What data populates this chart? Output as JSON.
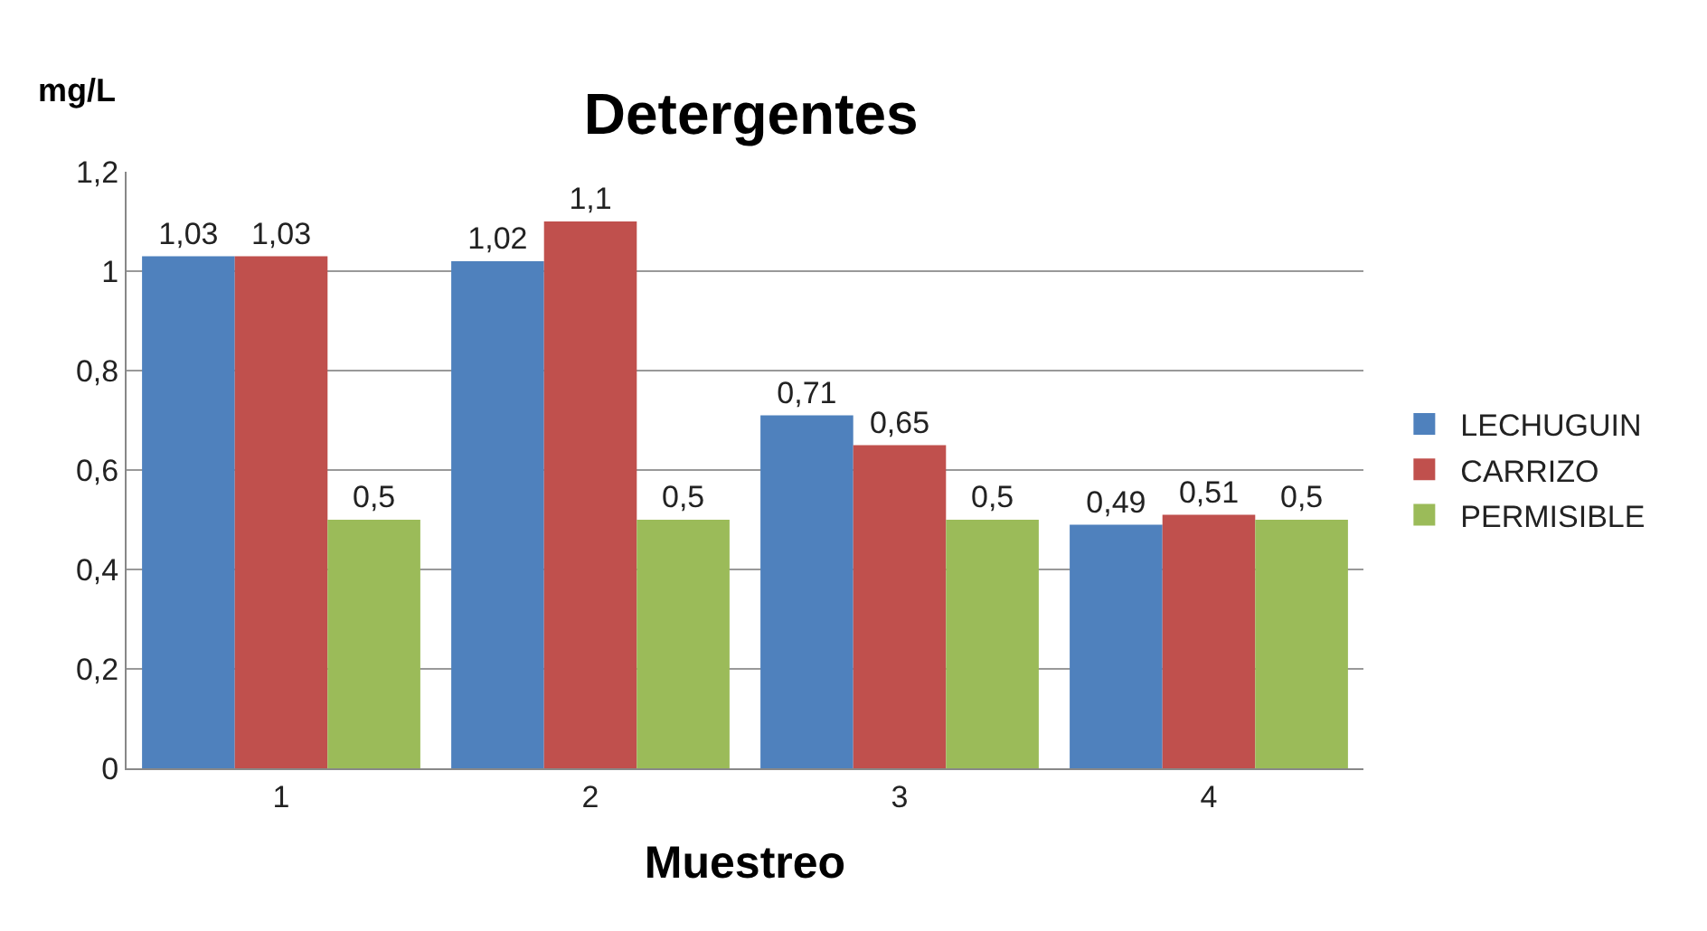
{
  "chart_data": {
    "type": "bar",
    "title": "Detergentes",
    "xlabel": "Muestreo",
    "ylabel": "mg/L",
    "categories": [
      "1",
      "2",
      "3",
      "4"
    ],
    "series": [
      {
        "name": "LECHUGUIN",
        "color": "#4f81bd",
        "values": [
          1.03,
          1.02,
          0.71,
          0.49
        ],
        "value_labels": [
          "1,03",
          "1,02",
          "0,71",
          "0,49"
        ]
      },
      {
        "name": "CARRIZO",
        "color": "#c0504d",
        "values": [
          1.03,
          1.1,
          0.65,
          0.51
        ],
        "value_labels": [
          "1,03",
          "1,1",
          "0,65",
          "0,51"
        ]
      },
      {
        "name": "PERMISIBLE",
        "color": "#9bbb59",
        "values": [
          0.5,
          0.5,
          0.5,
          0.5
        ],
        "value_labels": [
          "0,5",
          "0,5",
          "0,5",
          "0,5"
        ]
      }
    ],
    "ylim": [
      0,
      1.2
    ],
    "yticks": [
      0,
      {
        "value": 0.2,
        "label": "0,2"
      },
      {
        "value": 0.4,
        "label": "0,4"
      },
      {
        "value": 0.6,
        "label": "0,6"
      },
      {
        "value": 0.8,
        "label": "0,8"
      },
      1,
      {
        "value": 1.2,
        "label": "1,2"
      }
    ],
    "grid": "y",
    "legend": "right"
  }
}
